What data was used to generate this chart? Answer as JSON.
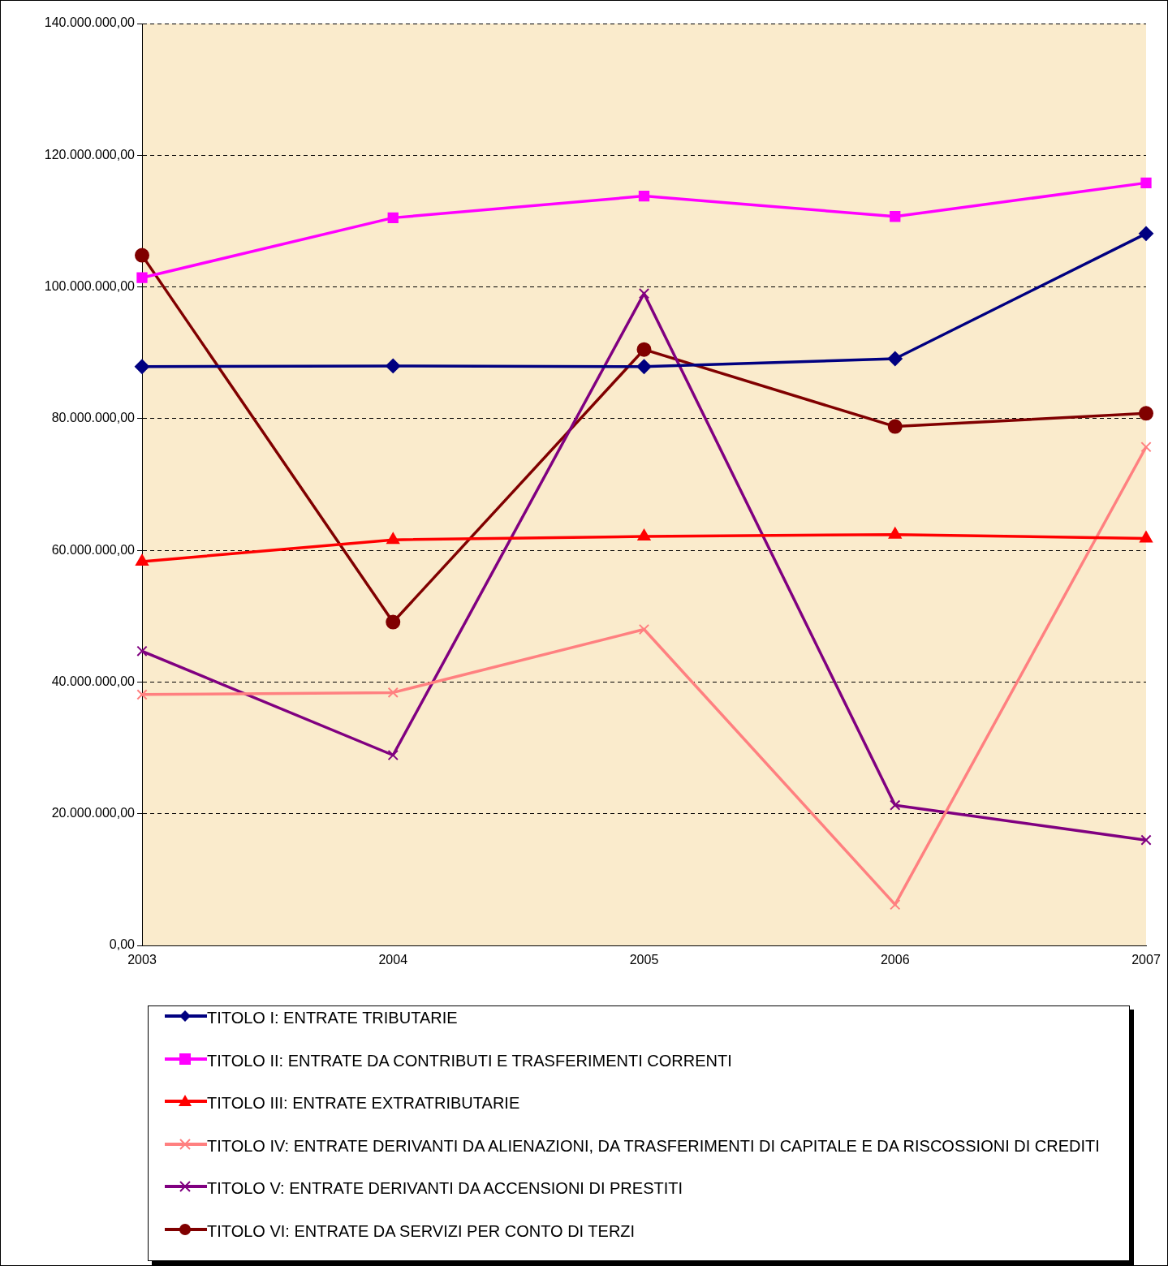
{
  "chart_data": {
    "type": "line",
    "categories": [
      "2003",
      "2004",
      "2005",
      "2006",
      "2007"
    ],
    "series": [
      {
        "name": "TITOLO I: ENTRATE TRIBUTARIE",
        "color": "#000080",
        "marker": "diamond",
        "values": [
          87900000,
          88000000,
          87900000,
          89100000,
          108100000
        ]
      },
      {
        "name": "TITOLO II: ENTRATE DA CONTRIBUTI E TRASFERIMENTI CORRENTI",
        "color": "#ff00ff",
        "marker": "square",
        "values": [
          101400000,
          110500000,
          113800000,
          110700000,
          115800000
        ]
      },
      {
        "name": "TITOLO III: ENTRATE EXTRATRIBUTARIE",
        "color": "#ff0000",
        "marker": "triangle",
        "values": [
          58300000,
          61600000,
          62100000,
          62400000,
          61800000
        ]
      },
      {
        "name": "TITOLO IV: ENTRATE DERIVANTI DA ALIENAZIONI, DA TRASFERIMENTI DI CAPITALE E DA RISCOSSIONI DI CREDITI",
        "color": "#ff8080",
        "marker": "cross",
        "values": [
          38100000,
          38400000,
          48000000,
          6200000,
          75700000
        ]
      },
      {
        "name": "TITOLO V: ENTRATE DERIVANTI DA ACCENSIONI DI PRESTITI",
        "color": "#800080",
        "marker": "cross",
        "values": [
          44700000,
          28900000,
          99000000,
          21300000,
          16000000
        ]
      },
      {
        "name": "TITOLO VI: ENTRATE DA SERVIZI PER CONTO DI TERZI",
        "color": "#800000",
        "marker": "circle",
        "values": [
          104800000,
          49100000,
          90500000,
          78800000,
          80800000
        ]
      }
    ],
    "ylim": [
      0,
      140000000
    ],
    "yticks": [
      {
        "value": 0,
        "label": "0,00"
      },
      {
        "value": 20000000,
        "label": "20.000.000,00"
      },
      {
        "value": 40000000,
        "label": "40.000.000,00"
      },
      {
        "value": 60000000,
        "label": "60.000.000,00"
      },
      {
        "value": 80000000,
        "label": "80.000.000,00"
      },
      {
        "value": 100000000,
        "label": "100.000.000,00"
      },
      {
        "value": 120000000,
        "label": "120.000.000,00"
      },
      {
        "value": 140000000,
        "label": "140.000.000,00"
      }
    ],
    "grid": "y",
    "legend": "bottom",
    "line_style": "solid"
  }
}
